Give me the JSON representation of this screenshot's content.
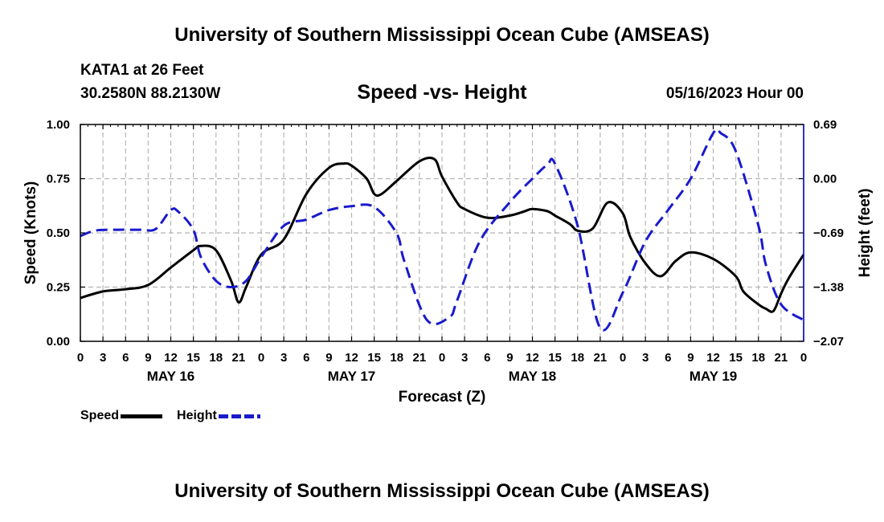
{
  "header": {
    "title": "University of Southern Mississippi Ocean Cube (AMSEAS)",
    "station": "KATA1 at 26 Feet",
    "coords": "30.2580N  88.2130W",
    "plot_title": "Speed -vs- Height",
    "date": "05/16/2023 Hour 00"
  },
  "footer": {
    "title": "University of Southern Mississippi Ocean Cube (AMSEAS)"
  },
  "legend": {
    "speed_label": "Speed",
    "height_label": "Height"
  },
  "colors": {
    "speed": "#000000",
    "height": "#1a1acc",
    "grid": "#b4b4b4"
  },
  "chart_data": {
    "type": "line",
    "xlabel": "Forecast (Z)",
    "ylabel": "Speed (Knots)",
    "y2label": "Height (feet)",
    "xlim": [
      0,
      96
    ],
    "ylim": [
      0,
      1.0
    ],
    "y2lim": [
      -2.07,
      0.69
    ],
    "x_tick_labels": [
      "0",
      "3",
      "6",
      "9",
      "12",
      "15",
      "18",
      "21",
      "0",
      "3",
      "6",
      "9",
      "12",
      "15",
      "18",
      "21",
      "0",
      "3",
      "6",
      "9",
      "12",
      "15",
      "18",
      "21",
      "0",
      "3",
      "6",
      "9",
      "12",
      "15",
      "18",
      "21",
      "0"
    ],
    "day_labels": [
      {
        "label": "MAY 16",
        "x": 12
      },
      {
        "label": "MAY 17",
        "x": 36
      },
      {
        "label": "MAY 18",
        "x": 60
      },
      {
        "label": "MAY 19",
        "x": 84
      }
    ],
    "y_ticks": [
      0,
      0.25,
      0.5,
      0.75,
      1.0
    ],
    "y_tick_labels": [
      "0.00",
      "0.25",
      "0.50",
      "0.75",
      "1.00"
    ],
    "y2_ticks": [
      -2.07,
      -1.38,
      -0.69,
      0.0,
      0.69
    ],
    "y2_tick_labels": [
      "−2.07",
      "−1.38",
      "−0.69",
      "0.00",
      "0.69"
    ],
    "series": [
      {
        "name": "Speed",
        "axis": "left",
        "x": [
          0,
          3,
          6,
          9,
          12,
          15,
          16,
          18,
          20,
          21,
          22,
          24,
          27,
          30,
          33,
          35,
          36,
          38,
          39,
          40,
          42,
          45,
          47,
          48,
          50,
          51,
          54,
          57,
          59,
          60,
          62,
          63,
          65,
          66,
          68,
          70,
          72,
          73,
          75,
          77,
          79,
          81,
          84,
          87,
          88,
          90,
          91,
          92,
          93,
          94,
          96
        ],
        "values": [
          0.2,
          0.23,
          0.24,
          0.26,
          0.34,
          0.42,
          0.44,
          0.42,
          0.28,
          0.18,
          0.25,
          0.4,
          0.47,
          0.68,
          0.8,
          0.82,
          0.81,
          0.75,
          0.68,
          0.68,
          0.74,
          0.83,
          0.84,
          0.76,
          0.64,
          0.61,
          0.57,
          0.58,
          0.6,
          0.61,
          0.6,
          0.58,
          0.54,
          0.51,
          0.52,
          0.64,
          0.59,
          0.48,
          0.36,
          0.3,
          0.37,
          0.41,
          0.38,
          0.3,
          0.23,
          0.17,
          0.15,
          0.14,
          0.22,
          0.29,
          0.4
        ]
      },
      {
        "name": "Height",
        "axis": "right",
        "x": [
          0,
          2,
          5,
          8,
          10,
          12,
          13,
          15,
          16,
          18,
          20,
          22,
          24,
          27,
          30,
          33,
          36,
          39,
          42,
          43,
          46,
          49,
          50,
          53,
          57,
          60,
          62,
          63,
          66,
          69,
          72,
          75,
          78,
          81,
          84,
          85,
          87,
          90,
          91,
          93,
          96
        ],
        "values": [
          -0.73,
          -0.66,
          -0.65,
          -0.65,
          -0.64,
          -0.4,
          -0.42,
          -0.65,
          -1.0,
          -1.3,
          -1.38,
          -1.3,
          -1.0,
          -0.6,
          -0.52,
          -0.4,
          -0.35,
          -0.36,
          -0.7,
          -1.05,
          -1.8,
          -1.76,
          -1.55,
          -0.8,
          -0.3,
          0.0,
          0.18,
          0.19,
          -0.6,
          -1.9,
          -1.45,
          -0.8,
          -0.4,
          0.0,
          0.58,
          0.58,
          0.35,
          -0.6,
          -1.1,
          -1.6,
          -1.8
        ]
      }
    ]
  }
}
